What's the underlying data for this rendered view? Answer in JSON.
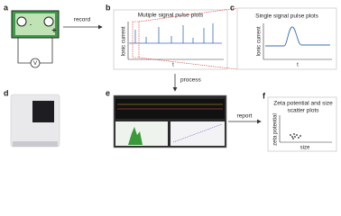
{
  "panels": [
    {
      "label": "a"
    },
    {
      "label": "b",
      "title": "Mutiple signal pulse plots",
      "y_label": "Ionic current",
      "x_label": "t"
    },
    {
      "label": "c",
      "title": "Single signal pulse plots",
      "y_label": "Ionic current",
      "x_label": "t"
    },
    {
      "label": "d"
    },
    {
      "label": "e"
    },
    {
      "label": "f",
      "title": [
        "Zeta potential and size",
        "scatter plots"
      ],
      "y_label": "zeta potential",
      "x_label": "size"
    }
  ],
  "circuit": {
    "meter": "V",
    "plus": "+",
    "minus": "-"
  },
  "arrows": {
    "record": "record",
    "process": "process",
    "report": "report"
  }
}
